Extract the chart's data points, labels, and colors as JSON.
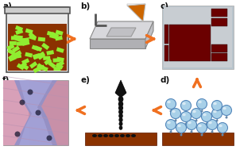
{
  "bg_color": "#ffffff",
  "arrow_color": "#f07020",
  "panel_labels": [
    "a)",
    "b)",
    "c)",
    "d)",
    "e)",
    "f)"
  ],
  "label_fontsize": 7.5,
  "label_color": "#111111",
  "beaker_fill_color": "#8B3200",
  "beaker_border_color": "#555555",
  "nanoparticle_color": "#90EE30",
  "substrate_brown": "#8B3200",
  "dark_red_electrode": "#6B0000",
  "blue_sphere_color": "#a8d0e8",
  "blue_sphere_edge": "#5588bb",
  "inkjet_black": "#111111"
}
